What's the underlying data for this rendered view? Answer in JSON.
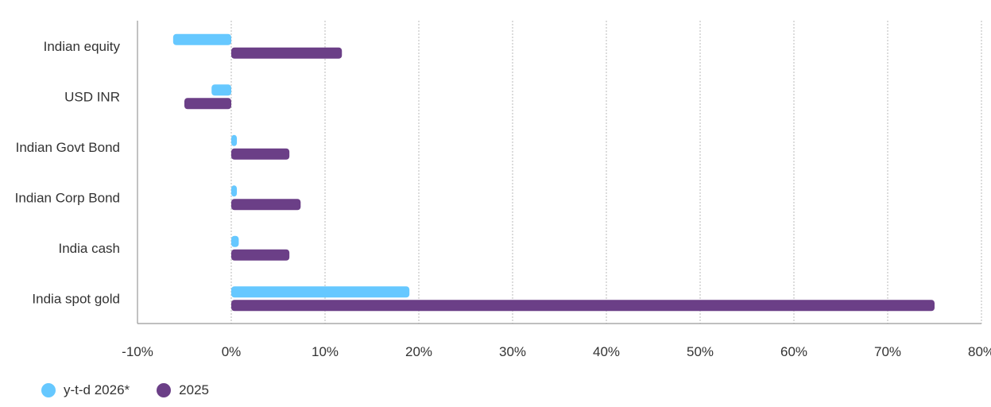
{
  "chart_data": {
    "type": "bar",
    "orientation": "horizontal",
    "categories": [
      "Indian equity",
      "USD INR",
      "Indian Govt Bond",
      "Indian Corp Bond",
      "India cash",
      "India spot gold"
    ],
    "series": [
      {
        "name": "y-t-d 2026*",
        "color": "#66c8ff",
        "values": [
          -6.2,
          -2.1,
          0.6,
          0.6,
          0.8,
          19.0
        ]
      },
      {
        "name": "2025",
        "color": "#6b3f87",
        "values": [
          11.8,
          -5.0,
          6.2,
          7.4,
          6.2,
          75.0
        ]
      }
    ],
    "x_ticks": [
      "-10%",
      "0%",
      "10%",
      "20%",
      "30%",
      "40%",
      "50%",
      "60%",
      "70%",
      "80%"
    ],
    "xlim": [
      -10,
      80
    ],
    "grid": "vertical dotted",
    "legend_position": "bottom-left"
  }
}
